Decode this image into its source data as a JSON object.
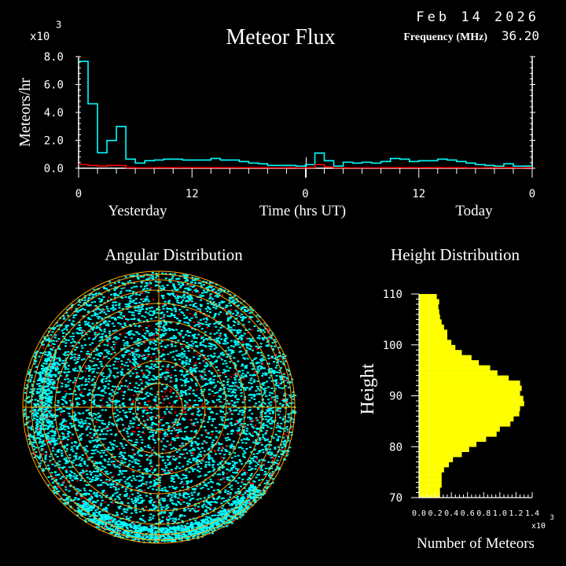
{
  "header": {
    "date": "Feb 14 2026",
    "frequency_label": "Frequency (MHz)",
    "frequency_value": "36.20"
  },
  "colors": {
    "background": "#000000",
    "total": "#00ffff",
    "red": "#ff0000",
    "grid": "#ffa500",
    "height_bars": "#ffff00",
    "axis": "#ffffff"
  },
  "chart_data": [
    {
      "type": "line",
      "title": "Meteor Flux",
      "ylabel": "Meteors/hr",
      "ymultiplier": "x10 3",
      "xlabel": "Time (hrs UT)",
      "day_labels": [
        "Yesterday",
        "Today"
      ],
      "xtick_labels": [
        "0",
        "12",
        "0",
        "12",
        "0"
      ],
      "ytick_labels": [
        "0.0",
        "2.0",
        "4.0",
        "6.0",
        "8.0"
      ],
      "ylim": [
        0,
        8.0
      ],
      "x_hours": 48,
      "series": [
        {
          "color": "#00ffff",
          "step": true,
          "values": [
            7.66,
            4.62,
            1.11,
            1.99,
            2.99,
            0.65,
            0.37,
            0.54,
            0.59,
            0.65,
            0.65,
            0.59,
            0.59,
            0.59,
            0.7,
            0.59,
            0.59,
            0.48,
            0.37,
            0.32,
            0.2,
            0.2,
            0.2,
            0.15,
            0.26,
            1.09,
            0.54,
            0.15,
            0.43,
            0.37,
            0.43,
            0.37,
            0.48,
            0.7,
            0.65,
            0.48,
            0.54,
            0.54,
            0.65,
            0.59,
            0.48,
            0.37,
            0.26,
            0.2,
            0.15,
            0.32,
            0.15,
            0.15
          ]
        },
        {
          "color": "#ff0000",
          "step": true,
          "values": [
            0.26,
            0.2,
            0.15,
            0.2,
            0.2,
            0.04,
            0,
            0,
            0.04,
            0.04,
            0.04,
            0.04,
            0.04,
            0.04,
            0.04,
            0.04,
            0.04,
            0.04,
            0.04,
            0.04,
            0,
            0,
            0.04,
            0,
            0.04,
            0.26,
            0.09,
            0,
            0,
            0,
            0,
            0,
            0.04,
            0.04,
            0.04,
            0.04,
            0.04,
            0.04,
            0.04,
            0.04,
            0.04,
            0,
            0,
            0.04,
            0.04,
            0.04,
            0,
            0.04
          ]
        }
      ]
    },
    {
      "type": "scatter",
      "title": "Angular Distribution",
      "projection": "polar sky map",
      "colors": [
        "#00ffff",
        "#ff0000"
      ]
    },
    {
      "type": "bar",
      "orientation": "horizontal",
      "title": "Height Distribution",
      "ylabel": "Height",
      "xlabel": "Number of Meteors",
      "xmultiplier": "x10 3",
      "ylim": [
        70,
        110
      ],
      "xlim": [
        0,
        1.4
      ],
      "ytick_labels": [
        "70",
        "80",
        "90",
        "100",
        "110"
      ],
      "xtick_labels": [
        "0.0",
        "0.2",
        "0.4",
        "0.6",
        "0.8",
        "1.0",
        "1.2",
        "1.4"
      ],
      "bins_top_to_bottom": [
        0.22,
        0.25,
        0.24,
        0.25,
        0.26,
        0.28,
        0.31,
        0.35,
        0.35,
        0.4,
        0.45,
        0.53,
        0.65,
        0.74,
        0.88,
        0.97,
        1.11,
        1.25,
        1.27,
        1.25,
        1.29,
        1.3,
        1.25,
        1.24,
        1.17,
        1.13,
        1.0,
        0.96,
        0.83,
        0.71,
        0.62,
        0.53,
        0.42,
        0.37,
        0.31,
        0.28,
        0.28,
        0.28,
        0.26,
        0.26
      ]
    }
  ]
}
